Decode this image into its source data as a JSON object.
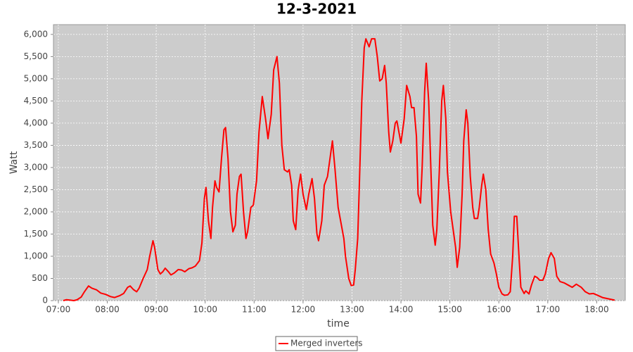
{
  "chart_data": {
    "type": "line",
    "title": "12-3-2021",
    "x_label": "time",
    "y_label": "Watt",
    "x": [
      "07:06",
      "07:10",
      "07:15",
      "07:19",
      "07:23",
      "07:28",
      "07:32",
      "07:37",
      "07:41",
      "07:47",
      "07:52",
      "07:58",
      "08:04",
      "08:09",
      "08:15",
      "08:20",
      "08:25",
      "08:28",
      "08:32",
      "08:36",
      "08:39",
      "08:44",
      "08:49",
      "08:52",
      "08:56",
      "08:58",
      "09:02",
      "09:05",
      "09:08",
      "09:11",
      "09:15",
      "09:18",
      "09:22",
      "09:27",
      "09:31",
      "09:35",
      "09:40",
      "09:44",
      "09:48",
      "09:53",
      "09:56",
      "09:59",
      "10:01",
      "10:04",
      "10:07",
      "10:09",
      "10:12",
      "10:14",
      "10:17",
      "10:20",
      "10:23",
      "10:25",
      "10:28",
      "10:31",
      "10:34",
      "10:37",
      "10:39",
      "10:42",
      "10:44",
      "10:47",
      "10:50",
      "10:52",
      "10:56",
      "10:59",
      "11:03",
      "11:06",
      "11:10",
      "11:14",
      "11:17",
      "11:21",
      "11:24",
      "11:28",
      "11:31",
      "11:34",
      "11:37",
      "11:41",
      "11:43",
      "11:46",
      "11:48",
      "11:51",
      "11:54",
      "11:57",
      "12:00",
      "12:04",
      "12:07",
      "12:11",
      "12:14",
      "12:17",
      "12:19",
      "12:23",
      "12:26",
      "12:30",
      "12:33",
      "12:36",
      "12:39",
      "12:43",
      "12:46",
      "12:50",
      "12:52",
      "12:56",
      "12:59",
      "13:02",
      "13:04",
      "13:07",
      "13:09",
      "13:12",
      "13:15",
      "13:17",
      "13:21",
      "13:24",
      "13:28",
      "13:31",
      "13:34",
      "13:37",
      "13:40",
      "13:42",
      "13:45",
      "13:47",
      "13:50",
      "13:53",
      "13:55",
      "13:58",
      "14:00",
      "14:04",
      "14:07",
      "14:11",
      "14:13",
      "14:16",
      "14:19",
      "14:21",
      "14:24",
      "14:26",
      "14:29",
      "14:31",
      "14:34",
      "14:37",
      "14:39",
      "14:42",
      "14:44",
      "14:47",
      "14:50",
      "14:52",
      "14:55",
      "14:57",
      "15:01",
      "15:04",
      "15:07",
      "15:09",
      "15:12",
      "15:15",
      "15:17",
      "15:20",
      "15:22",
      "15:25",
      "15:28",
      "15:30",
      "15:34",
      "15:36",
      "15:39",
      "15:41",
      "15:44",
      "15:47",
      "15:50",
      "15:54",
      "15:57",
      "16:00",
      "16:04",
      "16:07",
      "16:11",
      "16:14",
      "16:17",
      "16:19",
      "16:22",
      "16:25",
      "16:27",
      "16:31",
      "16:33",
      "16:37",
      "16:40",
      "16:44",
      "16:47",
      "16:50",
      "16:54",
      "16:57",
      "17:01",
      "17:04",
      "17:08",
      "17:11",
      "17:15",
      "17:20",
      "17:25",
      "17:30",
      "17:35",
      "17:41",
      "17:46",
      "17:51",
      "17:56",
      "18:01",
      "18:07",
      "18:12",
      "18:17",
      "18:22"
    ],
    "series": [
      {
        "name": "Merged inverters",
        "color": "#ff0000",
        "values": [
          0,
          20,
          10,
          0,
          20,
          80,
          200,
          330,
          280,
          240,
          170,
          140,
          90,
          70,
          110,
          160,
          300,
          330,
          250,
          200,
          280,
          500,
          700,
          1000,
          1350,
          1200,
          700,
          600,
          650,
          730,
          650,
          580,
          620,
          700,
          690,
          650,
          720,
          740,
          780,
          900,
          1300,
          2300,
          2550,
          1800,
          1400,
          2100,
          2700,
          2550,
          2450,
          3200,
          3850,
          3900,
          3200,
          2000,
          1550,
          1700,
          2400,
          2800,
          2850,
          2000,
          1400,
          1550,
          2100,
          2150,
          2700,
          3800,
          4600,
          4100,
          3650,
          4200,
          5200,
          5500,
          4900,
          3500,
          2950,
          2900,
          2950,
          2600,
          1800,
          1600,
          2500,
          2850,
          2400,
          2050,
          2400,
          2750,
          2300,
          1500,
          1350,
          1800,
          2600,
          2800,
          3200,
          3600,
          3000,
          2100,
          1800,
          1400,
          1000,
          500,
          340,
          350,
          700,
          1400,
          2600,
          4500,
          5700,
          5900,
          5720,
          5900,
          5900,
          5500,
          4950,
          5000,
          5300,
          4900,
          3800,
          3350,
          3600,
          4000,
          4050,
          3750,
          3550,
          4100,
          4850,
          4600,
          4350,
          4350,
          3700,
          2400,
          2200,
          3000,
          4700,
          5350,
          4500,
          2800,
          1700,
          1250,
          1600,
          2900,
          4500,
          4850,
          4100,
          2900,
          2000,
          1600,
          1200,
          750,
          1200,
          2400,
          3600,
          4300,
          4000,
          2800,
          2100,
          1850,
          1850,
          2100,
          2600,
          2850,
          2500,
          1600,
          1050,
          850,
          600,
          300,
          150,
          120,
          130,
          200,
          1000,
          1900,
          1900,
          900,
          300,
          160,
          220,
          150,
          350,
          550,
          520,
          460,
          460,
          600,
          950,
          1080,
          950,
          550,
          430,
          400,
          350,
          300,
          370,
          300,
          200,
          150,
          160,
          120,
          70,
          50,
          30,
          10
        ]
      }
    ],
    "xlim": [
      "06:54",
      "18:35"
    ],
    "xticks": [
      "07:00",
      "08:00",
      "09:00",
      "10:00",
      "11:00",
      "12:00",
      "13:00",
      "14:00",
      "15:00",
      "16:00",
      "17:00",
      "18:00"
    ],
    "ylim": [
      0,
      6220
    ],
    "yticks": [
      0,
      500,
      {
        "value": 1000,
        "label": "1,000"
      },
      {
        "value": 1500,
        "label": "1,500"
      },
      {
        "value": 2000,
        "label": "2,000"
      },
      {
        "value": 2500,
        "label": "2,500"
      },
      {
        "value": 3000,
        "label": "3,000"
      },
      {
        "value": 3500,
        "label": "3,500"
      },
      {
        "value": 4000,
        "label": "4,000"
      },
      {
        "value": 4500,
        "label": "4,500"
      },
      {
        "value": 5000,
        "label": "5,000"
      },
      {
        "value": 5500,
        "label": "5,500"
      },
      {
        "value": 6000,
        "label": "6,000"
      }
    ],
    "grid": true,
    "legend": "bottom"
  }
}
